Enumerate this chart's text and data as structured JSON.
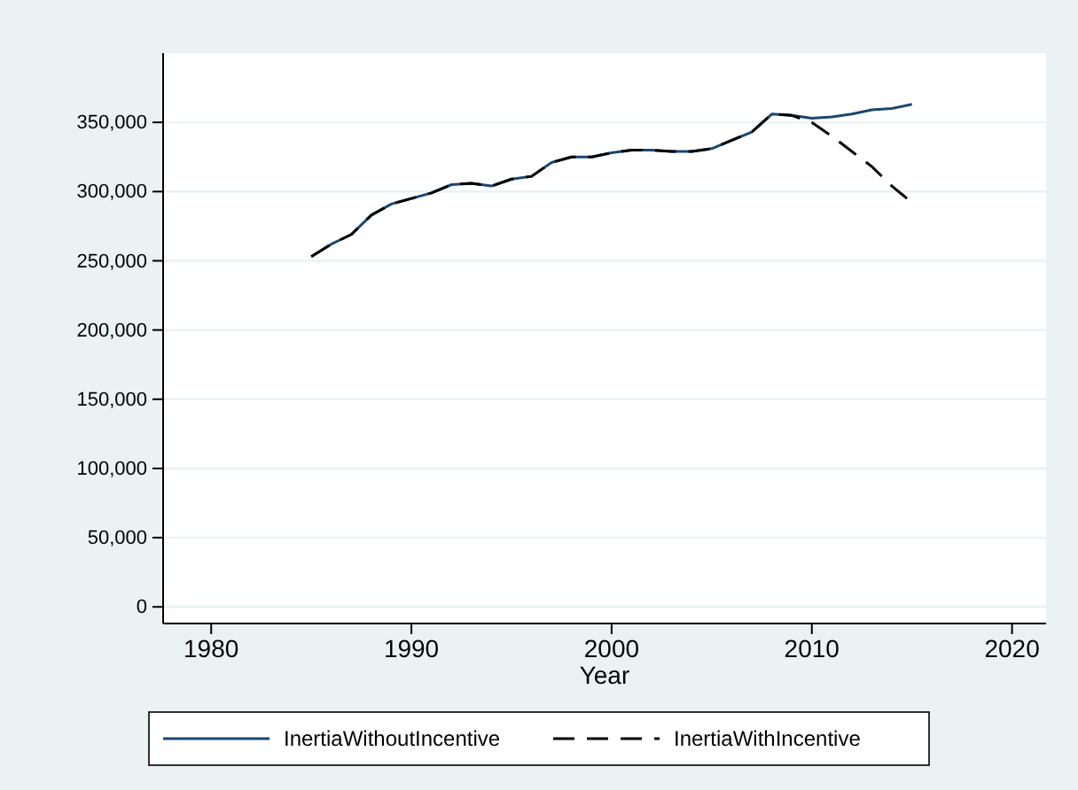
{
  "chart_data": {
    "type": "line",
    "xlabel": "Year",
    "x": [
      1985,
      1986,
      1987,
      1988,
      1989,
      1990,
      1991,
      1992,
      1993,
      1994,
      1995,
      1996,
      1997,
      1998,
      1999,
      2000,
      2001,
      2002,
      2003,
      2004,
      2005,
      2006,
      2007,
      2008,
      2009,
      2010,
      2011,
      2012,
      2013,
      2014,
      2015
    ],
    "series": [
      {
        "name": "InertiaWithoutIncentive",
        "color": "#1a476f",
        "line_style": "solid",
        "values": [
          253000,
          262000,
          269000,
          283000,
          291000,
          295000,
          299000,
          305000,
          306000,
          304000,
          309000,
          311000,
          321000,
          325000,
          325000,
          328000,
          330000,
          330000,
          329000,
          329000,
          331000,
          337000,
          343000,
          356000,
          355000,
          353000,
          354000,
          356000,
          359000,
          360000,
          363000
        ]
      },
      {
        "name": "InertiaWithIncentive",
        "color": "#000000",
        "line_style": "dashed",
        "values": [
          253000,
          262000,
          269000,
          283000,
          291000,
          295000,
          299000,
          305000,
          306000,
          304000,
          309000,
          311000,
          321000,
          325000,
          325000,
          328000,
          330000,
          330000,
          329000,
          329000,
          331000,
          337000,
          343000,
          356000,
          355000,
          350000,
          340000,
          329000,
          318000,
          304000,
          292000
        ]
      }
    ],
    "xlim": [
      1977.6,
      2021.7
    ],
    "xticks": [
      1980,
      1990,
      2000,
      2010,
      2020
    ],
    "ylim": [
      -12000,
      400000
    ],
    "yticks": [
      {
        "value": 0,
        "label": "0"
      },
      {
        "value": 50000,
        "label": "50,000"
      },
      {
        "value": 100000,
        "label": "100,000"
      },
      {
        "value": 150000,
        "label": "150,000"
      },
      {
        "value": 200000,
        "label": "200,000"
      },
      {
        "value": 250000,
        "label": "250,000"
      },
      {
        "value": 300000,
        "label": "300,000"
      },
      {
        "value": 350000,
        "label": "350,000"
      }
    ],
    "grid": "y",
    "legend": "bottom",
    "marker": "none"
  }
}
